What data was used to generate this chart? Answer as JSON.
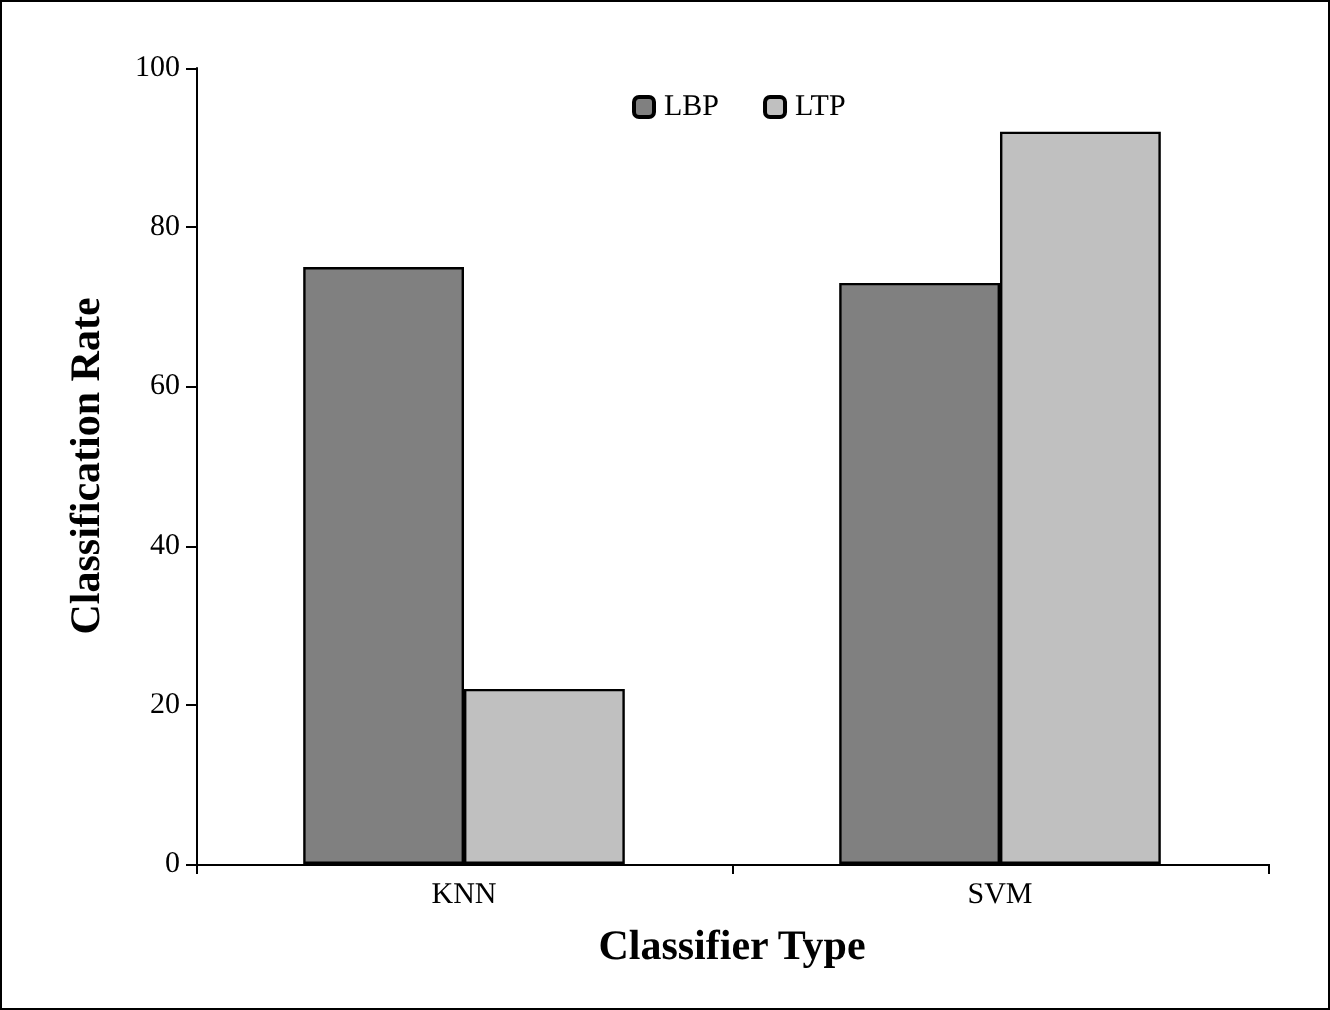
{
  "chart_data": {
    "type": "bar",
    "xlabel": "Classifier Type",
    "ylabel": "Classification Rate",
    "categories": [
      "KNN",
      "SVM"
    ],
    "series": [
      {
        "name": "LBP",
        "color": "#808080",
        "values": [
          75,
          73
        ]
      },
      {
        "name": "LTP",
        "color": "#c0c0c0",
        "values": [
          22,
          92
        ]
      }
    ],
    "ylim": [
      0,
      100
    ],
    "yticks": [
      0,
      20,
      40,
      60,
      80,
      100
    ],
    "grid": false,
    "legend": "top"
  }
}
